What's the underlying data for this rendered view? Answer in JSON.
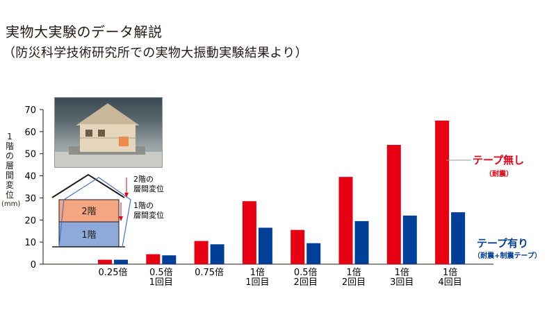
{
  "header": {
    "title": "実物大実験のデータ解説",
    "subtitle": "（防災科学技術研究所での実物大振動実験結果より）"
  },
  "photo": {
    "icon": "house-photo-icon"
  },
  "diagram": {
    "floor2": "2階",
    "floor1": "1階",
    "drift2_line1": "2階の",
    "drift2_line2": "層間変位",
    "drift1_line1": "1階の",
    "drift1_line2": "層間変位"
  },
  "legend": {
    "no_tape_label": "テープ無し",
    "no_tape_sub": "（耐震）",
    "tape_label": "テープ有り",
    "tape_sub": "（耐震+制震テープ）"
  },
  "colors": {
    "red": "#e60012",
    "blue": "#003f98",
    "orange": "#f4a582",
    "lightblue": "#8eaadb"
  },
  "chart_data": {
    "type": "bar",
    "ylabel_chars": [
      "1",
      "階",
      "の",
      "層",
      "間",
      "変",
      "位",
      "(mm)"
    ],
    "ylim": [
      0,
      70
    ],
    "yticks": [
      0,
      10,
      20,
      30,
      40,
      50,
      60,
      70
    ],
    "categories": [
      [
        "0.25倍"
      ],
      [
        "0.5倍",
        "1回目"
      ],
      [
        "0.75倍"
      ],
      [
        "1倍",
        "1回目"
      ],
      [
        "0.5倍",
        "2回目"
      ],
      [
        "1倍",
        "2回目"
      ],
      [
        "1倍",
        "3回目"
      ],
      [
        "1倍",
        "4回目"
      ]
    ],
    "series": [
      {
        "name": "テープ無し",
        "color": "#e60012",
        "values": [
          2,
          4.5,
          10.5,
          28.5,
          15.5,
          39.5,
          54,
          65
        ]
      },
      {
        "name": "テープ有り",
        "color": "#003f98",
        "values": [
          2,
          4,
          9,
          16.5,
          9.5,
          19.5,
          22,
          23.5
        ]
      }
    ],
    "grid": false
  }
}
